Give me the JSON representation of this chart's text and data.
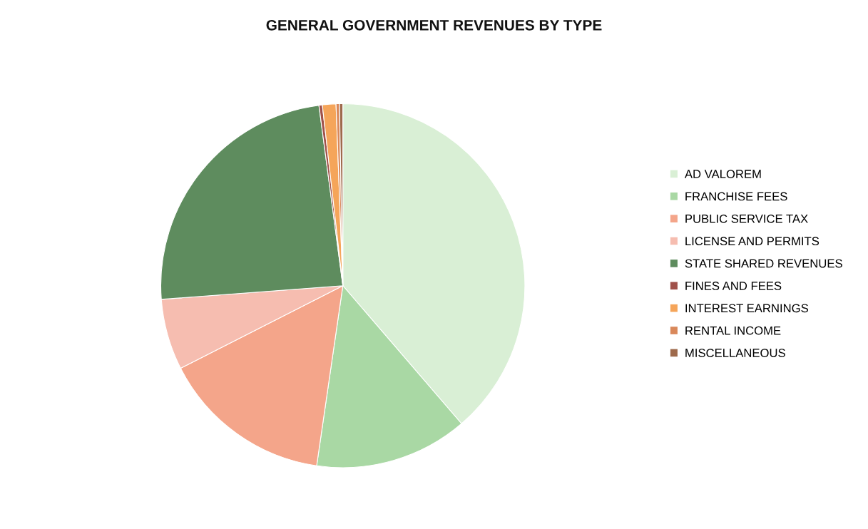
{
  "chart_data": {
    "type": "pie",
    "title": "GENERAL GOVERNMENT REVENUES BY TYPE",
    "categories": [
      "AD VALOREM",
      "FRANCHISE FEES",
      "PUBLIC SERVICE TAX",
      "LICENSE AND PERMITS",
      "STATE SHARED REVENUES",
      "FINES AND FEES",
      "INTEREST EARNINGS",
      "RENTAL INCOME",
      "MISCELLANEOUS"
    ],
    "values": [
      38.7,
      13.6,
      15.2,
      6.3,
      24.1,
      0.3,
      1.2,
      0.3,
      0.3
    ],
    "colors": [
      "#d9efd5",
      "#a9d8a4",
      "#f4a58a",
      "#f6bdb0",
      "#5e8c5e",
      "#a0514a",
      "#f5a55a",
      "#d9885a",
      "#9e6a4c"
    ],
    "legend": "right"
  }
}
